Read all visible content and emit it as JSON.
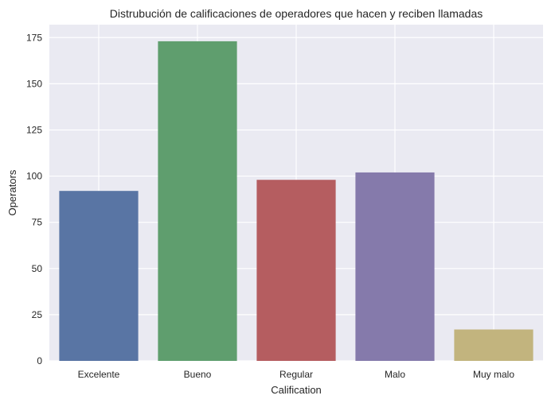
{
  "chart_data": {
    "type": "bar",
    "title": "Distrubución de calificaciones de operadores que hacen y reciben llamadas",
    "xlabel": "Calification",
    "ylabel": "Operators",
    "categories": [
      "Excelente",
      "Bueno",
      "Regular",
      "Malo",
      "Muy malo"
    ],
    "values": [
      92,
      173,
      98,
      102,
      17
    ],
    "colors": [
      "#5975a4",
      "#5f9e6e",
      "#b55d60",
      "#857aab",
      "#c2b47e"
    ],
    "ylim": [
      0,
      182
    ],
    "yticks": [
      0,
      25,
      50,
      75,
      100,
      125,
      150,
      175
    ],
    "grid": true,
    "style": {
      "plot_background": "#eaeaf2",
      "grid_color": "#ffffff"
    }
  }
}
